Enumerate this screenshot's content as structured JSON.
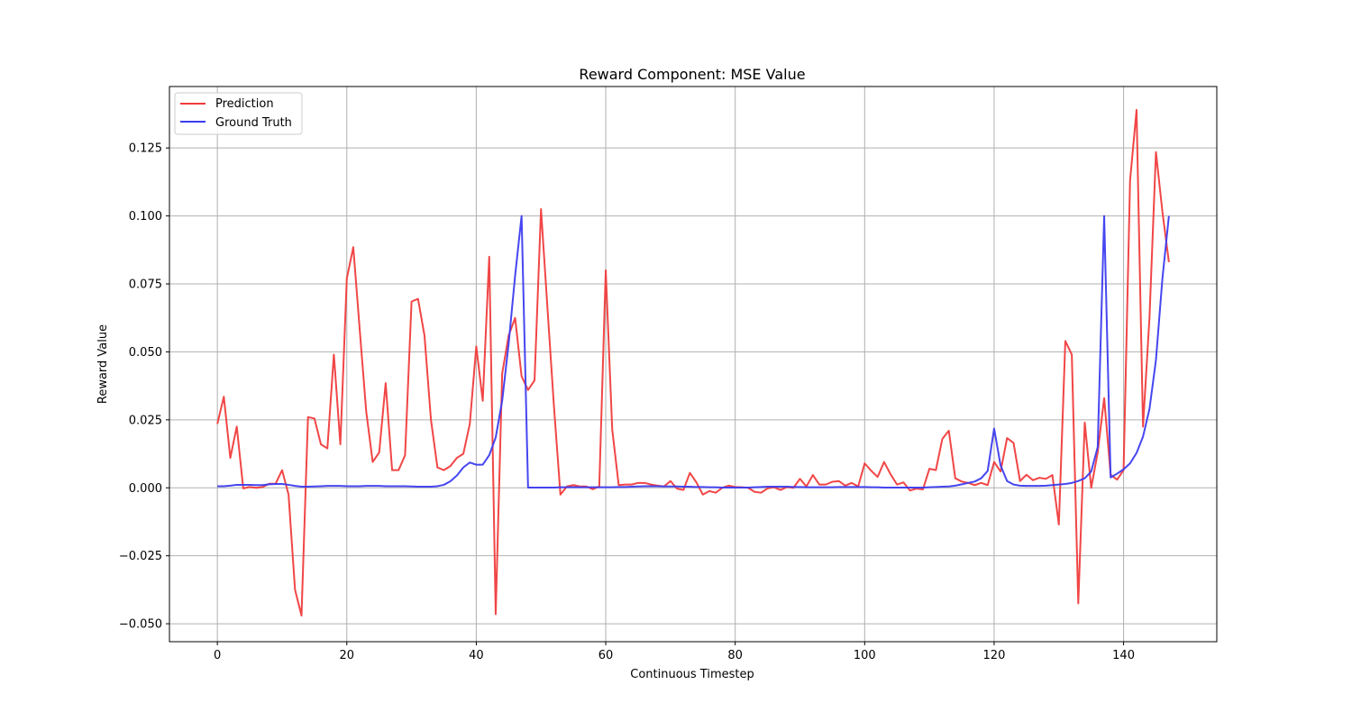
{
  "chart_data": {
    "type": "line",
    "title": "Reward Component: MSE Value",
    "xlabel": "Continuous Timestep",
    "ylabel": "Reward Value",
    "xlim": [
      -7.4,
      154.4
    ],
    "ylim": [
      -0.0566,
      0.1476
    ],
    "xticks": [
      0,
      20,
      40,
      60,
      80,
      100,
      120,
      140
    ],
    "yticks": [
      -0.05,
      -0.025,
      0.0,
      0.025,
      0.05,
      0.075,
      0.1,
      0.125
    ],
    "ytick_labels": [
      "−0.050",
      "−0.025",
      "0.000",
      "0.025",
      "0.050",
      "0.075",
      "0.100",
      "0.125"
    ],
    "xtick_labels": [
      "0",
      "20",
      "40",
      "60",
      "80",
      "100",
      "120",
      "140"
    ],
    "grid": true,
    "legend_position": "top-left",
    "series": [
      {
        "name": "Prediction",
        "color": "#f03c3c",
        "x_start": 0,
        "values": [
          0.0235,
          0.0335,
          0.011,
          0.0225,
          -0.0002,
          0.0003,
          0.0,
          0.0003,
          0.0015,
          0.0015,
          0.0065,
          -0.0025,
          -0.0375,
          -0.047,
          0.026,
          0.0255,
          0.016,
          0.0145,
          0.049,
          0.016,
          0.077,
          0.0885,
          0.058,
          0.028,
          0.0095,
          0.013,
          0.0385,
          0.0065,
          0.0065,
          0.012,
          0.0685,
          0.0695,
          0.056,
          0.025,
          0.0075,
          0.0065,
          0.008,
          0.011,
          0.0125,
          0.0235,
          0.052,
          0.032,
          0.085,
          -0.0465,
          0.042,
          0.056,
          0.0625,
          0.041,
          0.036,
          0.0395,
          0.1025,
          0.066,
          0.03,
          -0.0025,
          0.0005,
          0.001,
          0.0005,
          0.0005,
          -0.0005,
          0.0005,
          0.08,
          0.0215,
          0.001,
          0.0012,
          0.0012,
          0.0018,
          0.0018,
          0.0012,
          0.0008,
          0.0005,
          0.0025,
          -0.0003,
          -0.0008,
          0.0055,
          0.002,
          -0.0025,
          -0.0012,
          -0.0018,
          0.0,
          0.0008,
          0.0003,
          0.0002,
          0.0,
          -0.0015,
          -0.0018,
          -0.0002,
          0.0002,
          -0.0008,
          0.0003,
          0.0,
          0.0033,
          0.0005,
          0.0047,
          0.0012,
          0.0012,
          0.0022,
          0.0025,
          0.0008,
          0.0018,
          0.0005,
          0.009,
          0.0063,
          0.004,
          0.0095,
          0.005,
          0.0012,
          0.002,
          -0.001,
          -0.0003,
          -0.0006,
          0.007,
          0.0065,
          0.018,
          0.021,
          0.0035,
          0.0023,
          0.0018,
          0.001,
          0.0018,
          0.001,
          0.0095,
          0.006,
          0.0183,
          0.0165,
          0.0025,
          0.0048,
          0.0028,
          0.0037,
          0.0033,
          0.0047,
          -0.0135,
          0.054,
          0.049,
          -0.0425,
          0.024,
          0.0,
          0.013,
          0.033,
          0.0048,
          0.003,
          0.0065,
          0.113,
          0.139,
          0.0225,
          0.0625,
          0.1235,
          0.1015,
          0.083
        ]
      },
      {
        "name": "Ground Truth",
        "color": "#3c3cf0",
        "x_start": 0,
        "values": [
          0.0006,
          0.0006,
          0.0008,
          0.0011,
          0.0011,
          0.0011,
          0.001,
          0.001,
          0.0013,
          0.0014,
          0.0014,
          0.0011,
          0.0007,
          0.0004,
          0.0004,
          0.0005,
          0.0006,
          0.0007,
          0.0007,
          0.0007,
          0.0006,
          0.0006,
          0.0006,
          0.0007,
          0.0007,
          0.0007,
          0.0006,
          0.0006,
          0.0006,
          0.0006,
          0.0005,
          0.0004,
          0.0004,
          0.0004,
          0.0006,
          0.0011,
          0.0024,
          0.0045,
          0.0075,
          0.0093,
          0.0085,
          0.0085,
          0.012,
          0.0185,
          0.032,
          0.053,
          0.078,
          0.1,
          0.0001,
          0.0001,
          0.0001,
          0.0001,
          0.0001,
          0.0002,
          0.0002,
          0.0002,
          0.0002,
          0.0002,
          0.0002,
          0.0002,
          0.0002,
          0.0002,
          0.0003,
          0.0003,
          0.0004,
          0.0005,
          0.0006,
          0.0006,
          0.0006,
          0.0005,
          0.0005,
          0.0005,
          0.0004,
          0.0004,
          0.0003,
          0.0003,
          0.0002,
          0.0002,
          0.0001,
          0.0001,
          0.0001,
          0.0001,
          0.0001,
          0.0002,
          0.0003,
          0.0004,
          0.0004,
          0.0004,
          0.0004,
          0.0003,
          0.0003,
          0.0002,
          0.0002,
          0.0002,
          0.0002,
          0.0002,
          0.0003,
          0.0003,
          0.0003,
          0.0003,
          0.0003,
          0.0002,
          0.0002,
          0.0001,
          0.0001,
          0.0001,
          0.0001,
          0.0001,
          0.0001,
          0.0001,
          0.0002,
          0.0003,
          0.0004,
          0.0005,
          0.0008,
          0.0013,
          0.0018,
          0.0023,
          0.0035,
          0.0062,
          0.0218,
          0.0082,
          0.0025,
          0.0012,
          0.0008,
          0.0007,
          0.0007,
          0.0007,
          0.0008,
          0.001,
          0.0012,
          0.0014,
          0.0018,
          0.0025,
          0.0035,
          0.006,
          0.015,
          0.1,
          0.0038,
          0.0052,
          0.0068,
          0.009,
          0.0128,
          0.0188,
          0.029,
          0.047,
          0.077,
          0.1
        ]
      }
    ]
  }
}
